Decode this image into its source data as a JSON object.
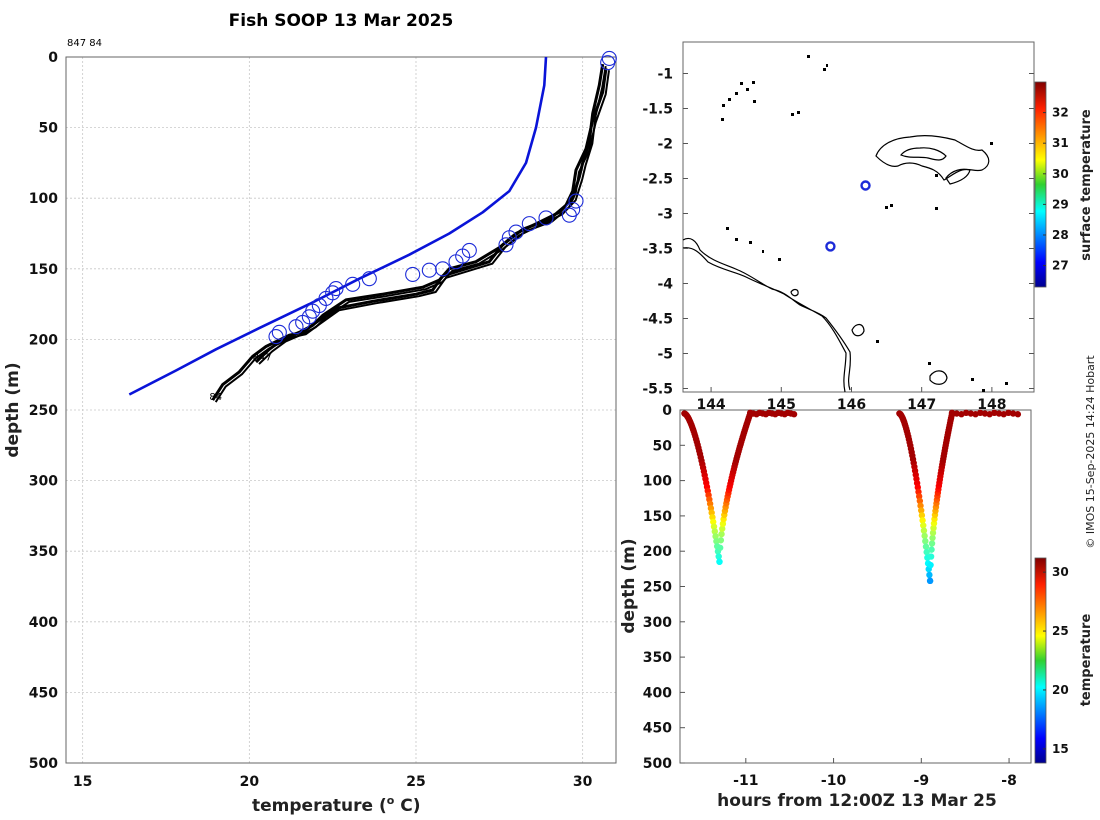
{
  "title": "Fish SOOP 13 Mar 2025",
  "credit": "© IMOS 15-Sep-2025 14:24 Hobart",
  "colors": {
    "climatology": "#0a14d8",
    "profile": "#000000",
    "marker": "#1c2bd8"
  },
  "chart_data": [
    {
      "id": "profile",
      "type": "line",
      "top_label": "847 84",
      "xlabel": "temperature (° C)",
      "xlabel_main": "temperature (",
      "xlabel_sup": "o",
      "xlabel_end": " C)",
      "ylabel": "depth (m)",
      "xlim": [
        14.5,
        31
      ],
      "ylim": [
        0,
        500
      ],
      "y_inverted": true,
      "xticks": [
        15,
        20,
        25,
        30
      ],
      "yticks": [
        0,
        50,
        100,
        150,
        200,
        250,
        300,
        350,
        400,
        450,
        500
      ],
      "grid": true,
      "profile_labels": [
        {
          "text": "847",
          "x": 20.1,
          "y": 215
        },
        {
          "text": "84",
          "x": 18.8,
          "y": 243
        }
      ],
      "series": [
        {
          "name": "climatology",
          "x": [
            28.9,
            28.85,
            28.6,
            28.3,
            27.8,
            27.0,
            26.0,
            24.8,
            23.3,
            21.8,
            20.3,
            19.0,
            17.8,
            16.4
          ],
          "y": [
            0,
            20,
            50,
            75,
            95,
            110,
            125,
            140,
            157,
            175,
            192,
            207,
            222,
            239
          ]
        },
        {
          "name": "profile-847",
          "x": [
            30.6,
            30.5,
            30.3,
            30.2,
            30.0,
            29.9,
            29.7,
            29.3,
            28.7,
            28.0,
            27.5,
            26.8,
            26.0,
            25.7,
            25.2,
            24.0,
            22.9,
            22.2,
            21.9,
            21.5,
            21.0,
            20.6,
            20.2
          ],
          "y": [
            5,
            20,
            40,
            60,
            75,
            85,
            100,
            110,
            117,
            125,
            135,
            145,
            150,
            158,
            163,
            168,
            172,
            183,
            190,
            195,
            200,
            207,
            216
          ]
        },
        {
          "name": "profile-84",
          "x": [
            30.7,
            30.6,
            30.3,
            30.1,
            29.8,
            29.7,
            29.5,
            29.0,
            28.2,
            27.6,
            27.2,
            26.5,
            25.8,
            25.5,
            25.0,
            23.7,
            22.6,
            22.0,
            21.6,
            21.2,
            20.5,
            20.1,
            19.7,
            19.2,
            18.9
          ],
          "y": [
            8,
            25,
            45,
            65,
            80,
            95,
            105,
            115,
            122,
            133,
            145,
            150,
            155,
            165,
            168,
            173,
            178,
            188,
            195,
            197,
            205,
            212,
            223,
            232,
            243
          ]
        }
      ],
      "markers": {
        "x": [
          30.8,
          30.75,
          29.8,
          29.7,
          29.6,
          28.9,
          28.4,
          28.0,
          27.8,
          27.7,
          26.6,
          26.4,
          26.2,
          25.8,
          25.4,
          24.9,
          23.6,
          23.1,
          22.6,
          22.5,
          22.3,
          22.1,
          21.9,
          21.8,
          21.6,
          21.4,
          20.9,
          20.8
        ],
        "y": [
          1,
          4,
          102,
          108,
          112,
          114,
          118,
          124,
          128,
          133,
          137,
          141,
          145,
          150,
          151,
          154,
          157,
          161,
          164,
          167,
          171,
          176,
          180,
          184,
          188,
          191,
          195,
          198
        ]
      }
    },
    {
      "id": "map",
      "type": "scatter",
      "xticks": [
        144,
        145,
        146,
        147,
        148
      ],
      "xticklabels": [
        "144",
        "145",
        "146",
        "147",
        "148"
      ],
      "yticks": [
        -1,
        -1.5,
        -2,
        -2.5,
        -3,
        -3.5,
        -4,
        -4.5,
        -5,
        -5.5
      ],
      "xlim": [
        143.6,
        148.6
      ],
      "ylim": [
        -5.55,
        -0.55
      ],
      "points": [
        {
          "lon": 146.2,
          "lat": -2.6
        },
        {
          "lon": 145.7,
          "lat": -3.47
        }
      ],
      "colorbar": {
        "label": "surface temperature",
        "ticks": [
          27,
          28,
          29,
          30,
          31,
          32
        ],
        "range": [
          26.3,
          33.0
        ]
      }
    },
    {
      "id": "timeseries",
      "type": "scatter",
      "xlabel": "hours from 12:00Z 13 Mar 25",
      "ylabel": "depth (m)",
      "xlim": [
        -11.75,
        -7.75
      ],
      "ylim": [
        0,
        500
      ],
      "y_inverted": true,
      "xticks": [
        -11,
        -10,
        -9,
        -8
      ],
      "yticks": [
        0,
        50,
        100,
        150,
        200,
        250,
        300,
        350,
        400,
        450,
        500
      ],
      "dives": [
        {
          "start": -11.7,
          "bottom": -11.3,
          "end": -10.95,
          "max_depth": 215,
          "tail_end": -10.45
        },
        {
          "start": -9.25,
          "bottom": -8.9,
          "end": -8.65,
          "max_depth": 242,
          "tail_end": -7.9
        }
      ],
      "colorbar": {
        "label": "temperature",
        "ticks": [
          15,
          20,
          25,
          30
        ],
        "range": [
          13.8,
          31.2
        ]
      }
    }
  ]
}
